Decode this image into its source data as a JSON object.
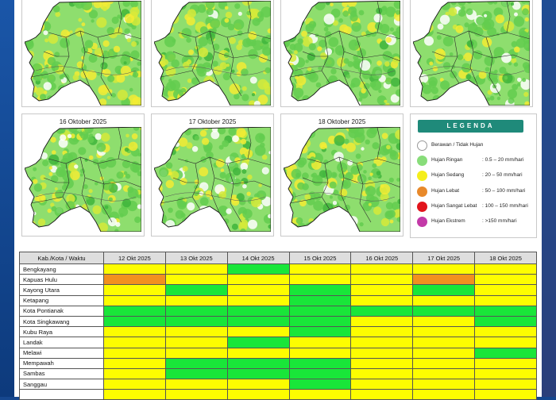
{
  "maps": [
    {
      "date": "",
      "variant": 0
    },
    {
      "date": "",
      "variant": 1
    },
    {
      "date": "",
      "variant": 2
    },
    {
      "date": "",
      "variant": 3
    },
    {
      "date": "16 Oktober 2025",
      "variant": 4
    },
    {
      "date": "17 Oktober 2025",
      "variant": 5
    },
    {
      "date": "18 Oktober 2025",
      "variant": 6
    }
  ],
  "legend": {
    "title": "LEGENDA",
    "items": [
      {
        "label": "Berawan / Tidak Hujan",
        "range": "",
        "color": "#ffffff"
      },
      {
        "label": "Hujan Ringan",
        "range": ": 0.5 – 20 mm/hari",
        "color": "#88dd7a"
      },
      {
        "label": "Hujan Sedang",
        "range": ": 20 – 50 mm/hari",
        "color": "#f5ee1a"
      },
      {
        "label": "Hujan Lebat",
        "range": ": 50 – 100 mm/hari",
        "color": "#e8892a"
      },
      {
        "label": "Hujan Sangat Lebat",
        "range": ": 100 – 150 mm/hari",
        "color": "#e2141c"
      },
      {
        "label": "Hujan Ekstrem",
        "range": ": >150 mm/hari",
        "color": "#c33aa8"
      }
    ]
  },
  "table": {
    "header": [
      "Kab./Kota / Waktu",
      "12 Okt 2025",
      "13 Okt 2025",
      "14 Okt 2025",
      "15 Okt 2025",
      "16 Okt 2025",
      "17 Okt 2025",
      "18 Okt 2025"
    ],
    "rows": [
      {
        "name": "Bengkayang",
        "cells": [
          "y",
          "y",
          "g",
          "y",
          "y",
          "y",
          "y"
        ]
      },
      {
        "name": "Kapuas Hulu",
        "cells": [
          "o",
          "y",
          "y",
          "y",
          "y",
          "o",
          "y"
        ]
      },
      {
        "name": "Kayong Utara",
        "cells": [
          "y",
          "g",
          "y",
          "g",
          "y",
          "g",
          "y"
        ]
      },
      {
        "name": "Ketapang",
        "cells": [
          "y",
          "y",
          "y",
          "g",
          "y",
          "y",
          "y"
        ]
      },
      {
        "name": "Kota Pontianak",
        "cells": [
          "g",
          "g",
          "g",
          "g",
          "g",
          "g",
          "g"
        ]
      },
      {
        "name": "Kota Singkawang",
        "cells": [
          "g",
          "g",
          "g",
          "g",
          "y",
          "y",
          "g"
        ]
      },
      {
        "name": "Kubu Raya",
        "cells": [
          "y",
          "y",
          "y",
          "g",
          "y",
          "y",
          "y"
        ]
      },
      {
        "name": "Landak",
        "cells": [
          "y",
          "y",
          "g",
          "y",
          "y",
          "y",
          "y"
        ]
      },
      {
        "name": "Melawi",
        "cells": [
          "y",
          "y",
          "y",
          "y",
          "y",
          "y",
          "g"
        ]
      },
      {
        "name": "Mempawah",
        "cells": [
          "y",
          "g",
          "g",
          "g",
          "y",
          "y",
          "y"
        ]
      },
      {
        "name": "Sambas",
        "cells": [
          "y",
          "g",
          "g",
          "g",
          "y",
          "y",
          "y"
        ]
      },
      {
        "name": "Sanggau",
        "cells": [
          "y",
          "y",
          "y",
          "g",
          "y",
          "y",
          "y"
        ]
      },
      {
        "name": "",
        "cells": [
          "y",
          "y",
          "y",
          "y",
          "y",
          "y",
          "y"
        ]
      }
    ]
  }
}
